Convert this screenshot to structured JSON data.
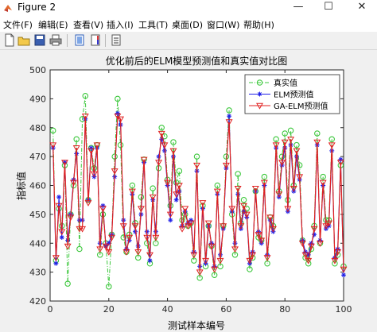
{
  "window": {
    "title": "Figure 2",
    "minimize": "—",
    "maximize": "☐",
    "close": "✕"
  },
  "menu": [
    "文件(F)",
    "编辑(E)",
    "查看(V)",
    "插入(I)",
    "工具(T)",
    "桌面(D)",
    "窗口(W)",
    "帮助(H)"
  ],
  "toolbar": [
    "new-file-icon",
    "open-folder-icon",
    "save-icon",
    "print-icon",
    "link-plot-icon",
    "insert-colorbar-icon",
    "insert-legend-icon"
  ],
  "colors": {
    "true_series": "#3ec83e",
    "elm_series": "#1f1fe8",
    "gaelm_series": "#e02020",
    "figure_bg": "#f0f0f0"
  },
  "chart_data": {
    "type": "line",
    "title": "优化前后的ELM模型预测值和真实值对比图",
    "xlabel": "测试样本编号",
    "ylabel": "指标值",
    "xlim": [
      0,
      100
    ],
    "ylim": [
      420,
      500
    ],
    "xticks": [
      0,
      20,
      40,
      60,
      80,
      100
    ],
    "yticks": [
      420,
      430,
      440,
      450,
      460,
      470,
      480,
      490,
      500
    ],
    "grid": false,
    "legend_position": "top-right",
    "x": [
      1,
      2,
      3,
      4,
      5,
      6,
      7,
      8,
      9,
      10,
      11,
      12,
      13,
      14,
      15,
      16,
      17,
      18,
      19,
      20,
      21,
      22,
      23,
      24,
      25,
      26,
      27,
      28,
      29,
      30,
      31,
      32,
      33,
      34,
      35,
      36,
      37,
      38,
      39,
      40,
      41,
      42,
      43,
      44,
      45,
      46,
      47,
      48,
      49,
      50,
      51,
      52,
      53,
      54,
      55,
      56,
      57,
      58,
      59,
      60,
      61,
      62,
      63,
      64,
      65,
      66,
      67,
      68,
      69,
      70,
      71,
      72,
      73,
      74,
      75,
      76,
      77,
      78,
      79,
      80,
      81,
      82,
      83,
      84,
      85,
      86,
      87,
      88,
      89,
      90,
      91,
      92,
      93,
      94,
      95,
      96,
      97,
      98,
      99,
      100
    ],
    "series": [
      {
        "name": "真实值",
        "marker": "circle",
        "line": "dashdot",
        "values": [
          479,
          434,
          452,
          446,
          467,
          426,
          450,
          460,
          476,
          438,
          483,
          491,
          455,
          473,
          466,
          474,
          436,
          450,
          440,
          425,
          443,
          470,
          490,
          474,
          442,
          437,
          443,
          460,
          447,
          435,
          456,
          469,
          440,
          433,
          459,
          440,
          466,
          480,
          477,
          462,
          453,
          475,
          461,
          465,
          448,
          450,
          446,
          447,
          434,
          470,
          428,
          453,
          432,
          446,
          439,
          429,
          460,
          432,
          446,
          470,
          486,
          450,
          436,
          464,
          447,
          455,
          452,
          431,
          435,
          458,
          442,
          441,
          463,
          433,
          449,
          446,
          476,
          458,
          470,
          478,
          455,
          479,
          460,
          474,
          467,
          441,
          435,
          433,
          438,
          446,
          478,
          440,
          463,
          448,
          448,
          476,
          433,
          436,
          467,
          432
        ]
      },
      {
        "name": "ELM预测值",
        "marker": "star",
        "values": [
          473,
          433,
          456,
          442,
          468,
          441,
          450,
          462,
          471,
          448,
          448,
          483,
          455,
          473,
          463,
          473,
          440,
          453,
          439,
          440,
          443,
          463,
          485,
          481,
          448,
          438,
          441,
          457,
          444,
          439,
          450,
          468,
          444,
          434,
          455,
          444,
          470,
          476,
          472,
          460,
          448,
          470,
          455,
          458,
          446,
          451,
          447,
          448,
          437,
          465,
          432,
          452,
          433,
          446,
          440,
          432,
          457,
          436,
          445,
          466,
          484,
          451,
          440,
          457,
          445,
          451,
          449,
          433,
          437,
          458,
          444,
          440,
          460,
          436,
          448,
          444,
          473,
          456,
          467,
          473,
          451,
          474,
          458,
          470,
          462,
          441,
          437,
          436,
          440,
          443,
          474,
          441,
          460,
          445,
          446,
          472,
          435,
          438,
          469,
          429
        ]
      },
      {
        "name": "GA-ELM预测值",
        "marker": "triangle-down",
        "values": [
          474,
          435,
          453,
          444,
          468,
          439,
          449,
          461,
          473,
          445,
          445,
          484,
          454,
          472,
          464,
          474,
          438,
          452,
          439,
          437,
          442,
          465,
          484,
          483,
          446,
          437,
          442,
          458,
          446,
          437,
          452,
          469,
          442,
          436,
          456,
          442,
          468,
          478,
          474,
          461,
          450,
          472,
          457,
          460,
          445,
          452,
          446,
          447,
          436,
          467,
          430,
          454,
          434,
          447,
          439,
          431,
          458,
          434,
          446,
          467,
          482,
          452,
          438,
          459,
          446,
          453,
          450,
          434,
          436,
          459,
          443,
          441,
          461,
          435,
          449,
          445,
          474,
          457,
          468,
          475,
          452,
          476,
          459,
          472,
          463,
          440,
          436,
          434,
          439,
          445,
          475,
          440,
          461,
          446,
          447,
          474,
          434,
          437,
          468,
          431
        ]
      }
    ]
  }
}
